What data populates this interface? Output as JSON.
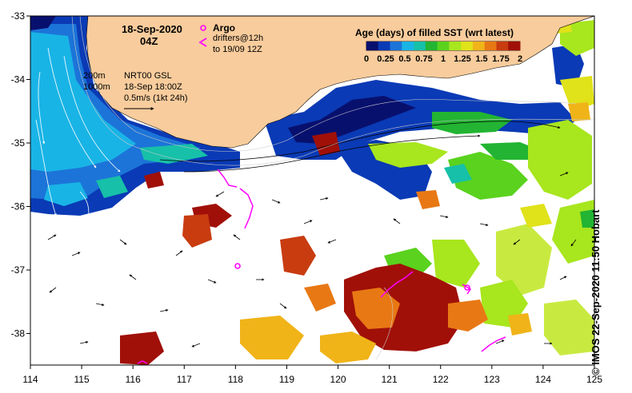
{
  "header": {
    "date": "18-Sep-2020",
    "time": "04Z"
  },
  "argo_legend": {
    "title": "Argo",
    "drifters_line1": "drifters@12h",
    "drifters_line2": "to 19/09 12Z"
  },
  "current_info": {
    "isobath_shallow": "200m",
    "isobath_deep": "1000m",
    "product": "NRT00 GSL",
    "valid_time": "18-Sep 18:00Z",
    "scale": "0.5m/s (1kt 24h)"
  },
  "colorbar": {
    "title": "Age (days) of filled SST (wrt latest)",
    "tick_labels": [
      "0",
      "0.25",
      "0.5",
      "0.75",
      "1",
      "1.25",
      "1.5",
      "1.75",
      "2"
    ],
    "colors": [
      "#08106e",
      "#0a3ab5",
      "#1c74d8",
      "#19b4e6",
      "#17c0a8",
      "#22b432",
      "#5ad21e",
      "#a8e61e",
      "#e0e21a",
      "#f0b418",
      "#e87814",
      "#c83c10",
      "#a01008"
    ]
  },
  "axes": {
    "x_tick_labels": [
      "114",
      "115",
      "116",
      "117",
      "118",
      "119",
      "120",
      "121",
      "122",
      "123",
      "124",
      "125"
    ],
    "y_tick_labels": [
      "-33",
      "-34",
      "-35",
      "-36",
      "-37",
      "-38"
    ]
  },
  "credit": "© IMOS 22-Sep-2020 11:50 Hobart",
  "colors": {
    "land": "#f8cc9c",
    "ocean_nodata": "#ffffff",
    "argo_marker": "#ff00ff"
  }
}
